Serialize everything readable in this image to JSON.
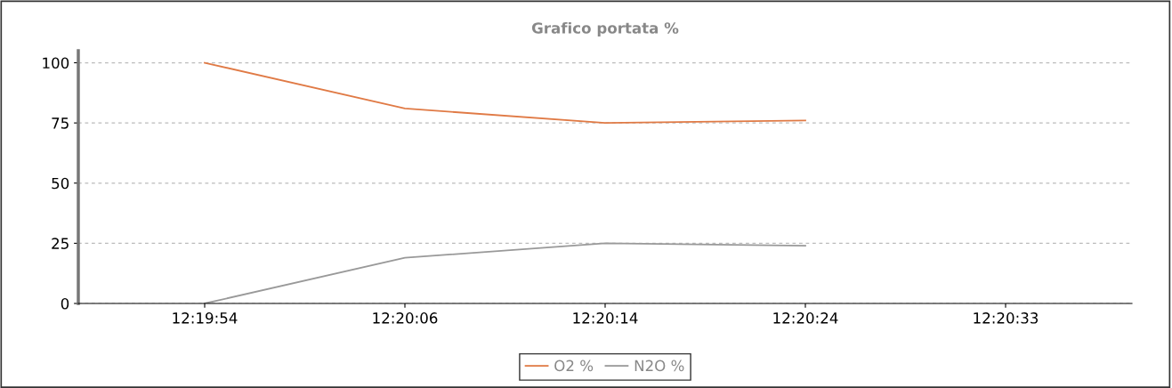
{
  "chart_data": {
    "type": "line",
    "title": "Grafico portata %",
    "categories": [
      "12:19:54",
      "12:20:06",
      "12:20:14",
      "12:20:24",
      "12:20:33"
    ],
    "series": [
      {
        "name": "O2 %",
        "color": "#e07a45",
        "values": [
          100,
          81,
          75,
          76,
          null
        ]
      },
      {
        "name": "N2O %",
        "color": "#999999",
        "values": [
          0,
          19,
          25,
          24,
          null
        ]
      }
    ],
    "ylim": [
      0,
      105
    ],
    "yticks": [
      0,
      25,
      50,
      75,
      100
    ],
    "grid": "y",
    "legend": "bottom",
    "marker": "none",
    "line_style": "solid"
  }
}
